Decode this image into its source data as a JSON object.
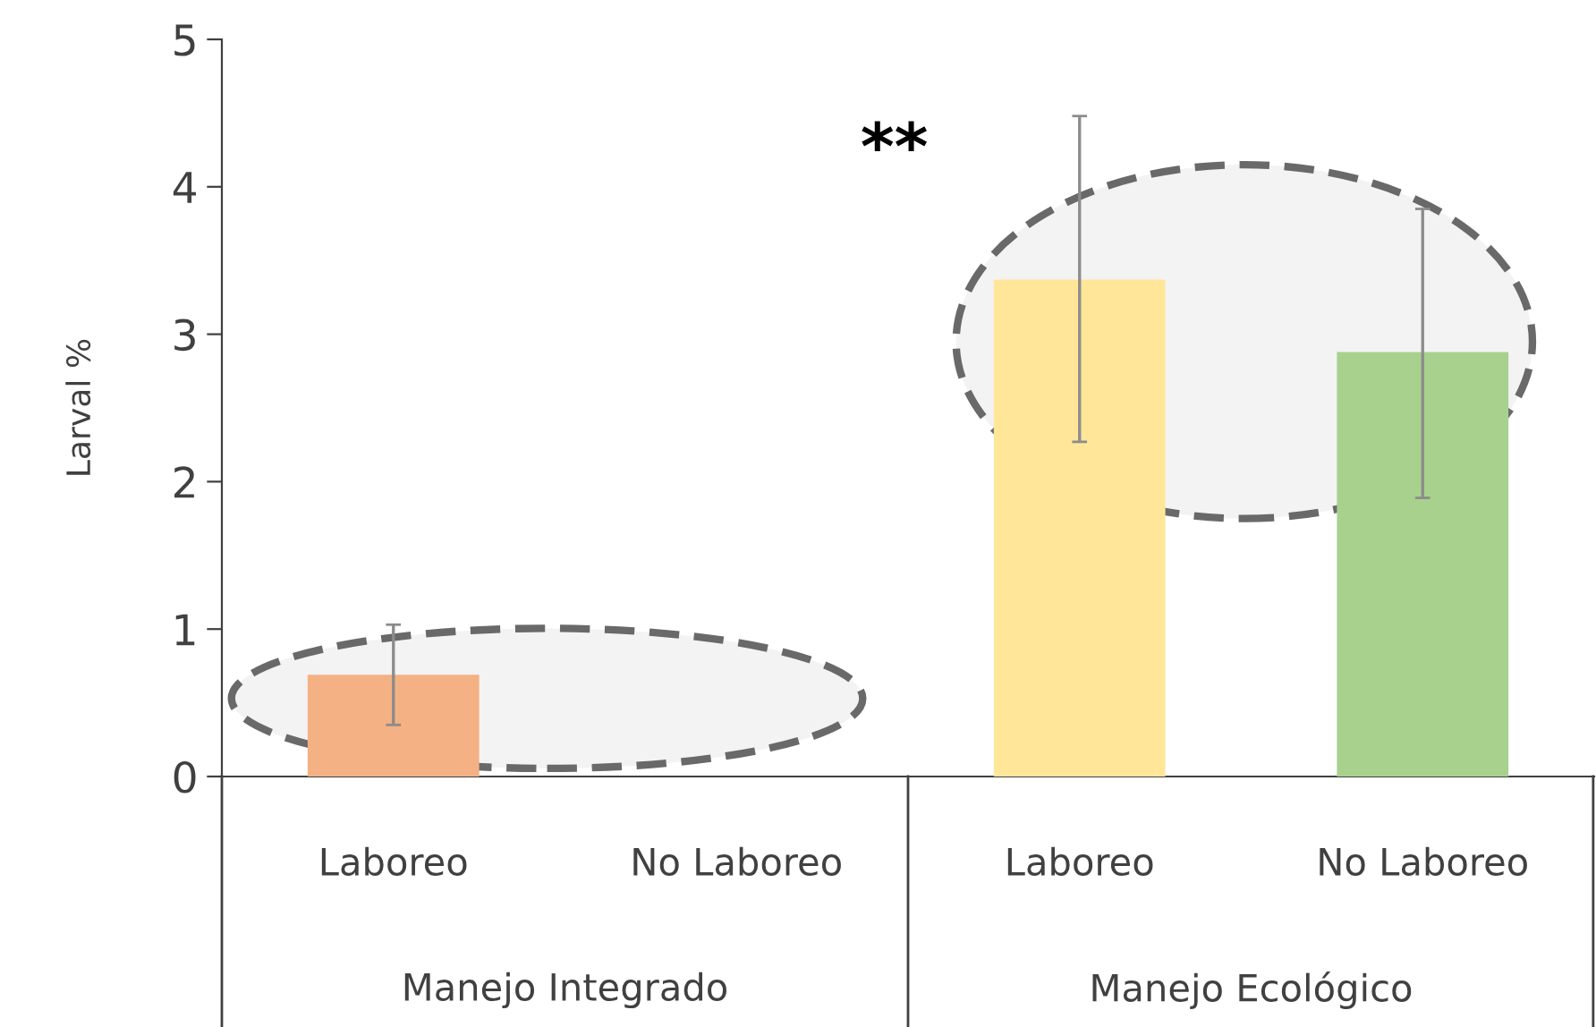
{
  "chart_data": {
    "type": "bar",
    "ylabel": "Larval %",
    "categories": [
      "Laboreo",
      "No Laboreo",
      "Laboreo",
      "No Laboreo"
    ],
    "values": [
      0.69,
      null,
      3.37,
      2.88
    ],
    "colors": [
      "#f4b183",
      null,
      "#ffe699",
      "#a9d18e"
    ],
    "errors": [
      [
        0.35,
        1.03
      ],
      null,
      [
        2.27,
        4.48
      ],
      [
        1.89,
        3.85
      ]
    ],
    "ylim": [
      0,
      5
    ],
    "yticks": [
      0,
      1,
      2,
      3,
      4,
      5
    ],
    "grid": false,
    "legend": false,
    "annotations": [
      "**",
      "Manejo Integrado",
      "Manejo Ecológico"
    ]
  }
}
